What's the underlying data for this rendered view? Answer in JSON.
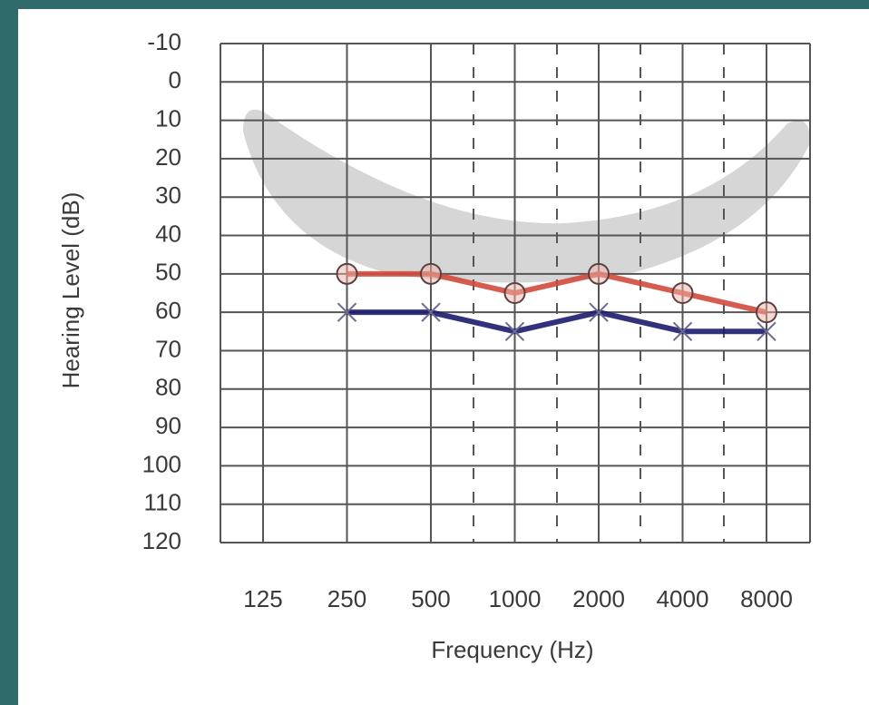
{
  "chart_data": {
    "type": "line",
    "xlabel": "Frequency (Hz)",
    "ylabel": "Hearing Level (dB)",
    "categories": [
      "125",
      "250",
      "500",
      "1000",
      "2000",
      "4000",
      "8000"
    ],
    "series": [
      {
        "color": "#d24a3c",
        "marker": "circle",
        "values": [
          null,
          50,
          50,
          55,
          50,
          55,
          60
        ]
      },
      {
        "color": "#1c1c6e",
        "marker": "x",
        "values": [
          null,
          60,
          60,
          65,
          60,
          65,
          65
        ]
      }
    ],
    "ylim": [
      -10,
      120
    ],
    "inverted": true,
    "yticks": [
      -10,
      0,
      10,
      20,
      30,
      40,
      50,
      60,
      70,
      80,
      90,
      100,
      110,
      120
    ],
    "grid": true
  }
}
